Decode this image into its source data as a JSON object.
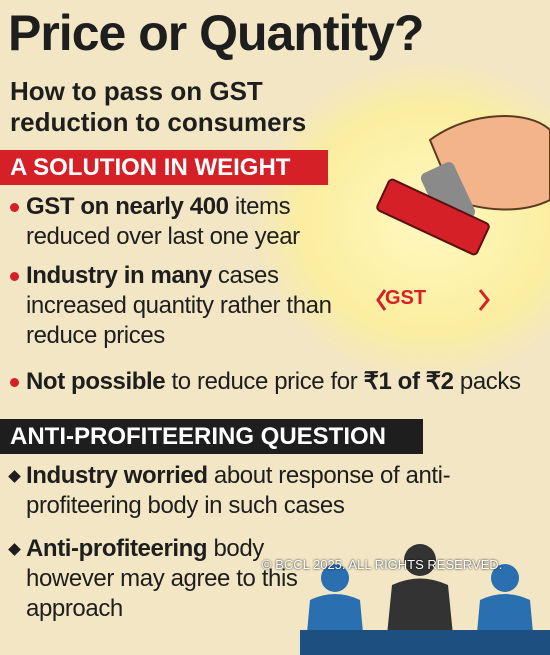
{
  "title": "Price or Quantity?",
  "subtitle": "How to pass on GST reduction to consumers",
  "sections": [
    {
      "heading": "A SOLUTION IN WEIGHT",
      "style": "red",
      "bullets": [
        [
          {
            "text": "GST on nearly 400",
            "bold": true
          },
          {
            "text": " items reduced over last one year",
            "bold": false
          }
        ],
        [
          {
            "text": "Industry in many",
            "bold": true
          },
          {
            "text": " cases increased quantity rather than reduce prices",
            "bold": false
          }
        ],
        [
          {
            "text": "Not possible",
            "bold": true
          },
          {
            "text": " to reduce price for ",
            "bold": false
          },
          {
            "text": "₹1 of ₹2",
            "bold": true
          },
          {
            "text": " packs",
            "bold": false
          }
        ]
      ]
    },
    {
      "heading": "ANTI-PROFITEERING QUESTION",
      "style": "black",
      "bullets": [
        [
          {
            "text": "Industry worried",
            "bold": true
          },
          {
            "text": " about response of anti-profiteering body in such cases",
            "bold": false
          }
        ],
        [
          {
            "text": "Anti-profiteering",
            "bold": true
          },
          {
            "text": " body however may agree to this approach",
            "bold": false
          }
        ]
      ]
    }
  ],
  "stamp_label": "GST",
  "watermark": "© BCCL 2025. ALL RIGHTS RESERVED."
}
